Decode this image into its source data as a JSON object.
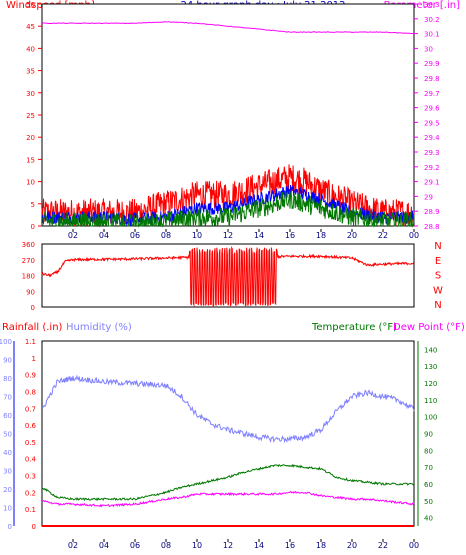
{
  "title": "24 hour graph day : July 21 2012",
  "time_axis": {
    "labels": [
      "02",
      "04",
      "06",
      "08",
      "10",
      "12",
      "14",
      "16",
      "18",
      "20",
      "22",
      "00"
    ],
    "hours": [
      2,
      4,
      6,
      8,
      10,
      12,
      14,
      16,
      18,
      20,
      22,
      24
    ]
  },
  "colors": {
    "windspeed": "#ff0000",
    "wind_avg": "#0000ff",
    "wind_low": "#007700",
    "barometer": "#ff00ff",
    "direction": "#ff0000",
    "rainfall": "#ff0000",
    "humidity": "#8080ff",
    "temperature": "#007700",
    "dewpoint": "#ff00ff",
    "frame": "#000000",
    "grid": "#c0c0c0",
    "title": "#0000c0"
  },
  "chart_data": [
    {
      "type": "line",
      "name": "wind-barometer",
      "left_label": "Windspeed [mph]",
      "right_label": "Barometer [.in]",
      "left_ylim": [
        0,
        50
      ],
      "left_ticks": [
        "0",
        "5",
        "10",
        "15",
        "20",
        "25",
        "30",
        "35",
        "40",
        "45",
        "50"
      ],
      "right_ylim": [
        28.8,
        30.3
      ],
      "right_ticks": [
        "28.8",
        "28.9",
        "29",
        "29.1",
        "29.2",
        "29.3",
        "29.4",
        "29.5",
        "29.6",
        "29.7",
        "29.8",
        "29.9",
        "30",
        "30.1",
        "30.2",
        "30.3"
      ],
      "x": [
        0,
        2,
        4,
        6,
        8,
        10,
        12,
        14,
        15,
        16,
        17,
        18,
        20,
        22,
        24
      ],
      "series": [
        {
          "axis": "left",
          "key": "windspeed",
          "values": [
            3,
            3,
            3,
            3,
            5,
            7,
            7,
            9,
            10,
            11,
            10,
            8,
            5,
            3,
            3
          ]
        },
        {
          "axis": "left",
          "key": "wind_avg",
          "values": [
            2,
            2,
            2,
            1.5,
            2,
            4,
            4,
            6,
            7,
            8,
            7,
            6,
            3,
            2,
            2
          ]
        },
        {
          "axis": "left",
          "key": "wind_low",
          "values": [
            1,
            1,
            1,
            0.5,
            1,
            2,
            2,
            4,
            5,
            6,
            5,
            4,
            2,
            1,
            1
          ]
        },
        {
          "axis": "right",
          "key": "barometer",
          "values": [
            30.17,
            30.17,
            30.17,
            30.17,
            30.18,
            30.17,
            30.15,
            30.13,
            30.12,
            30.11,
            30.11,
            30.11,
            30.11,
            30.11,
            30.1
          ]
        }
      ]
    },
    {
      "type": "line",
      "name": "wind-direction",
      "ylim": [
        0,
        360
      ],
      "left_ticks": [
        "0",
        "90",
        "180",
        "270",
        "360"
      ],
      "right_labels": [
        "N",
        "W",
        "S",
        "E",
        "N"
      ],
      "x": [
        0,
        0.5,
        1,
        1.5,
        2,
        6,
        10,
        12,
        14,
        16,
        18,
        20,
        21,
        22,
        24
      ],
      "values": [
        190,
        180,
        200,
        260,
        270,
        275,
        285,
        270,
        285,
        290,
        290,
        280,
        240,
        245,
        250
      ],
      "oscillation_hours": [
        9.5,
        15.2
      ]
    },
    {
      "type": "line",
      "name": "rain-humidity-temperature",
      "rain_label": "Rainfall (.in)",
      "humidity_label": "Humidity (%)",
      "temperature_label": "Temperature (°F)",
      "dewpoint_label": "Dew Point (°F)",
      "humidity_ylim": [
        0,
        100
      ],
      "humidity_ticks": [
        "0",
        "10",
        "20",
        "30",
        "40",
        "50",
        "60",
        "70",
        "80",
        "90",
        "100"
      ],
      "rain_ylim": [
        0,
        1.1
      ],
      "rain_ticks": [
        "0",
        "0.1",
        "0.2",
        "0.3",
        "0.4",
        "0.5",
        "0.6",
        "0.7",
        "0.8",
        "0.9",
        "1",
        "1.1"
      ],
      "temp_ylim": [
        35,
        145
      ],
      "temp_ticks": [
        "40",
        "50",
        "60",
        "70",
        "80",
        "90",
        "100",
        "110",
        "120",
        "130",
        "140"
      ],
      "x": [
        0,
        1,
        2,
        4,
        6,
        8,
        9,
        10,
        11,
        12,
        13,
        14,
        15,
        16,
        17,
        18,
        19,
        20,
        21,
        22,
        23,
        24
      ],
      "series": [
        {
          "key": "humidity",
          "values": [
            63,
            78,
            80,
            78,
            77,
            76,
            70,
            60,
            55,
            52,
            50,
            48,
            47,
            47,
            48,
            52,
            62,
            70,
            72,
            70,
            68,
            63
          ]
        },
        {
          "key": "temperature",
          "values": [
            58,
            52,
            51,
            51,
            51,
            55,
            58,
            60,
            62,
            64,
            67,
            69,
            71,
            71,
            70,
            69,
            64,
            62,
            61,
            60,
            60,
            60
          ]
        },
        {
          "key": "dewpoint",
          "values": [
            50,
            48,
            48,
            47,
            48,
            51,
            52,
            54,
            54,
            54,
            54,
            54,
            54,
            55,
            55,
            53,
            52,
            51,
            51,
            50,
            49,
            48
          ]
        },
        {
          "key": "rainfall",
          "values": [
            0,
            0,
            0,
            0,
            0,
            0,
            0,
            0,
            0,
            0,
            0,
            0,
            0,
            0,
            0,
            0,
            0,
            0,
            0,
            0,
            0,
            0
          ]
        }
      ]
    }
  ]
}
